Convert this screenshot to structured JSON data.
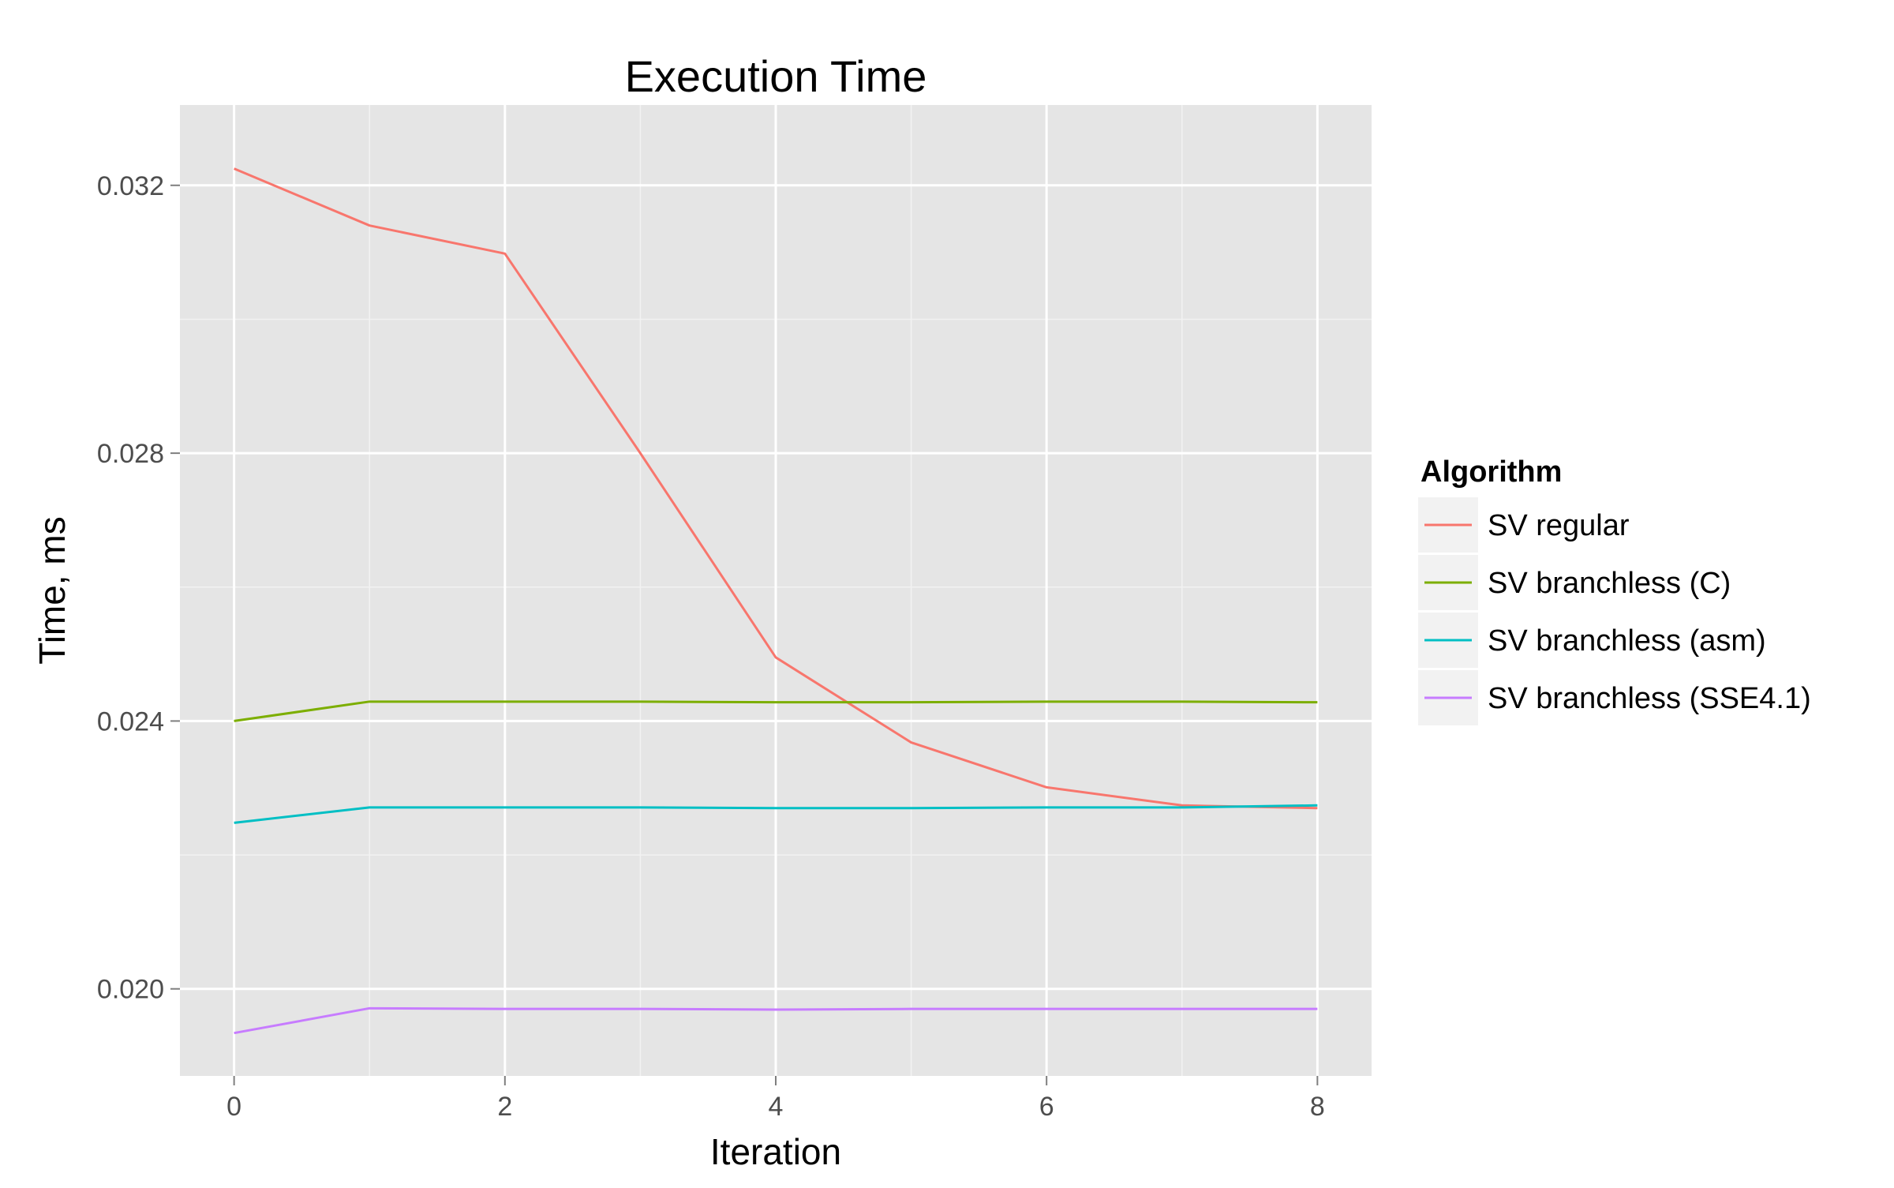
{
  "chart_data": {
    "type": "line",
    "title": "Execution Time",
    "xlabel": "Iteration",
    "ylabel": "Time, ms",
    "x": [
      0,
      1,
      2,
      3,
      4,
      5,
      6,
      7,
      8
    ],
    "xlim": [
      -0.4,
      8.4
    ],
    "ylim": [
      0.0187,
      0.0332
    ],
    "x_ticks": [
      0,
      2,
      4,
      6,
      8
    ],
    "x_tick_labels": [
      "0",
      "2",
      "4",
      "6",
      "8"
    ],
    "y_ticks": [
      0.02,
      0.024,
      0.028,
      0.032
    ],
    "y_tick_labels": [
      "0.020",
      "0.024",
      "0.028",
      "0.032"
    ],
    "grid": true,
    "legend": {
      "title": "Algorithm",
      "placement": "right"
    },
    "series": [
      {
        "name": "SV regular",
        "color": "#F8766D",
        "values": [
          0.03225,
          0.0314,
          0.03098,
          0.028,
          0.02495,
          0.02368,
          0.02301,
          0.02274,
          0.0227
        ]
      },
      {
        "name": "SV branchless (C)",
        "color": "#7CAE00",
        "values": [
          0.024,
          0.02429,
          0.02429,
          0.02429,
          0.02428,
          0.02428,
          0.02429,
          0.02429,
          0.02428
        ]
      },
      {
        "name": "SV branchless (asm)",
        "color": "#00BFC4",
        "values": [
          0.02248,
          0.02271,
          0.02271,
          0.02271,
          0.0227,
          0.0227,
          0.02271,
          0.02271,
          0.02274
        ]
      },
      {
        "name": "SV branchless (SSE4.1)",
        "color": "#C77CFF",
        "values": [
          0.01934,
          0.01971,
          0.0197,
          0.0197,
          0.01969,
          0.0197,
          0.0197,
          0.0197,
          0.0197
        ]
      }
    ]
  }
}
